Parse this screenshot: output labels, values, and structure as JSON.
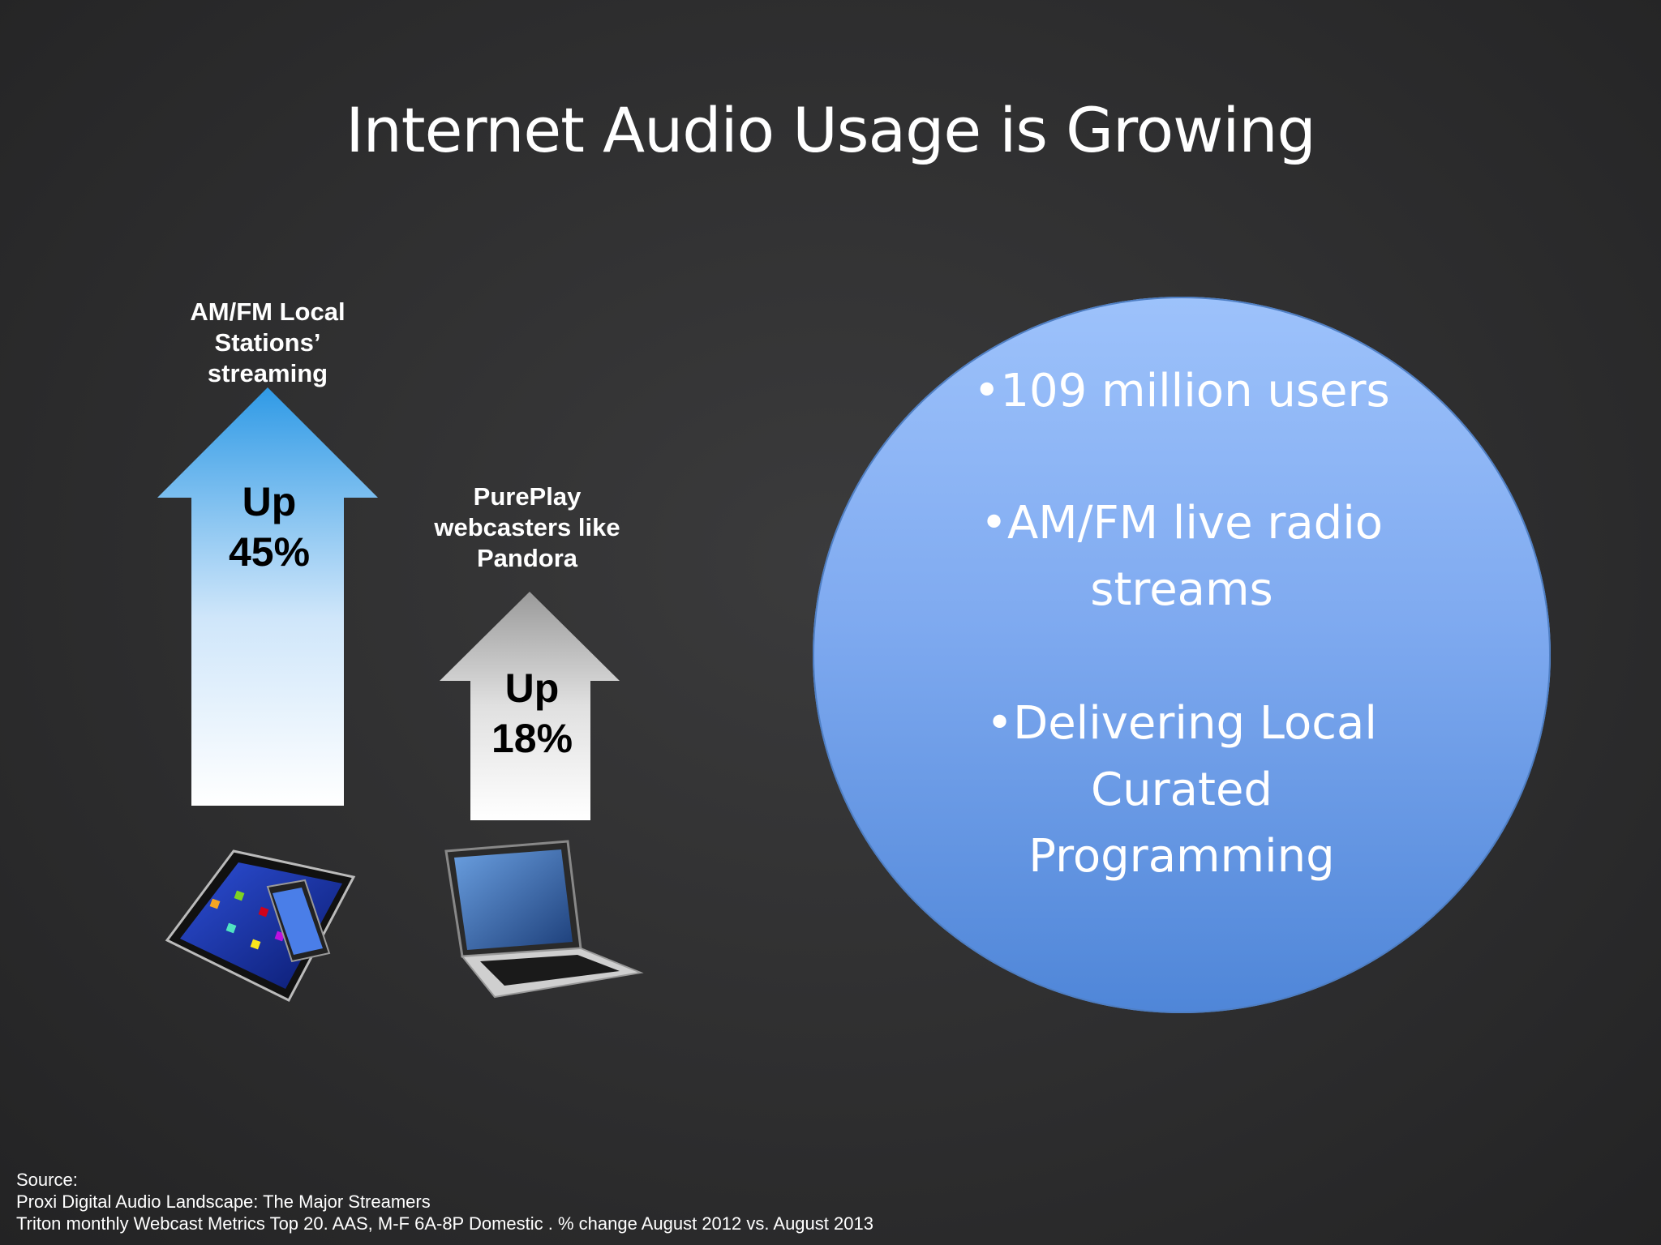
{
  "slide": {
    "title": "Internet Audio Usage is Growing"
  },
  "arrows": [
    {
      "label_lines": [
        "AM/FM Local",
        "Stations’",
        "streaming"
      ],
      "text_lines": [
        "Up",
        "45%"
      ],
      "device_icon": "tablet-and-phone-icon",
      "gradient": [
        "#2f9ae6",
        "#ffffff"
      ]
    },
    {
      "label_lines": [
        "PurePlay",
        "webcasters like",
        "Pandora"
      ],
      "text_lines": [
        "Up",
        "18%"
      ],
      "device_icon": "laptop-icon",
      "gradient": [
        "#9a9a9a",
        "#ffffff"
      ]
    }
  ],
  "circle": {
    "bullets": [
      [
        "•109 million users"
      ],
      [
        "•AM/FM live radio",
        "streams"
      ],
      [
        "•Delivering Local",
        "Curated",
        "Programming"
      ]
    ],
    "colors": {
      "top": "#9dc2fb",
      "bottom": "#4f86d8"
    }
  },
  "source": {
    "lines": [
      "Source:",
      "Proxi Digital Audio Landscape: The Major Streamers",
      "Triton monthly Webcast Metrics Top 20. AAS, M-F 6A-8P Domestic . % change August 2012 vs. August 2013"
    ]
  }
}
